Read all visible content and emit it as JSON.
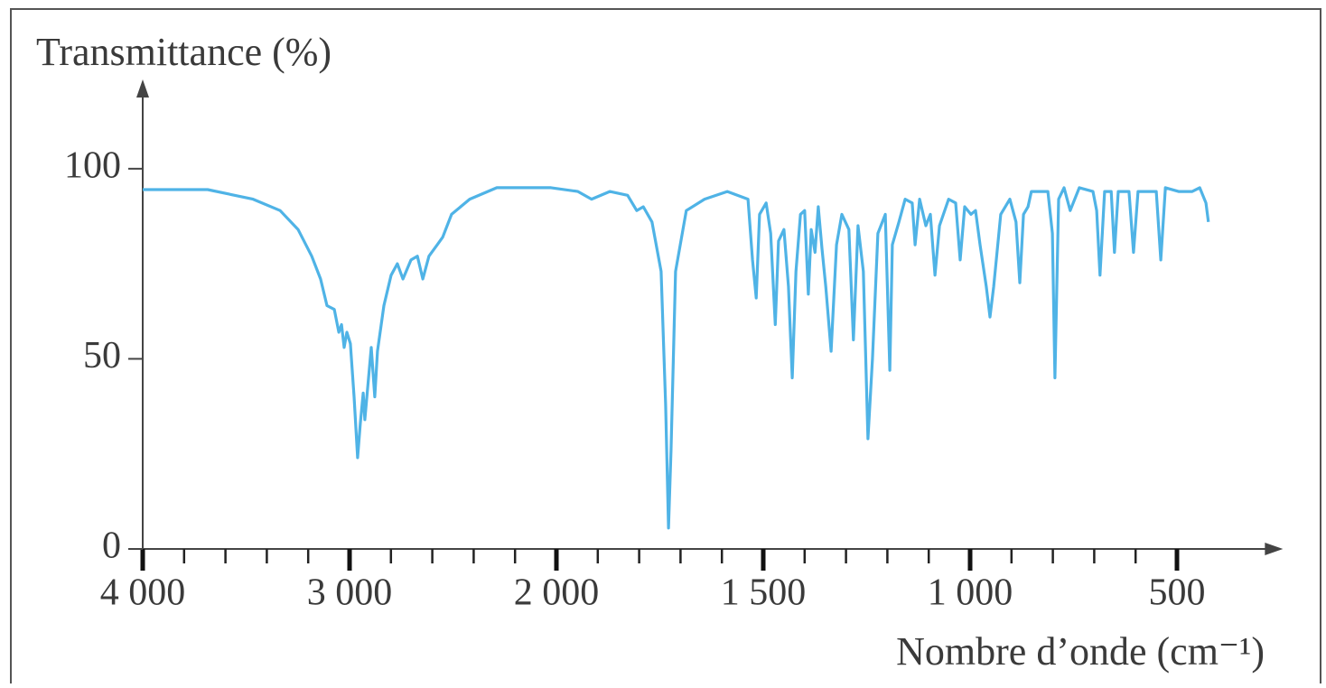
{
  "chart_data": {
    "type": "line",
    "ylabel": "Transmittance (%)",
    "xlabel": "Nombre d’onde (cm⁻¹)",
    "color": "#4fb3e6",
    "xlim": [
      4000,
      270
    ],
    "ylim": [
      0,
      123
    ],
    "xticks": [
      {
        "value": 4000,
        "label": "4 000"
      },
      {
        "value": 3000,
        "label": "3 000"
      },
      {
        "value": 2000,
        "label": "2 000"
      },
      {
        "value": 1500,
        "label": "1 500"
      },
      {
        "value": 1000,
        "label": "1 000"
      },
      500
    ],
    "xminorticks": [
      3800,
      3600,
      3400,
      3200,
      2800,
      2600,
      2400,
      2200,
      1900,
      1800,
      1700,
      1600,
      1400,
      1300,
      1200,
      1100,
      900,
      800,
      700,
      600
    ],
    "yticks": [
      0,
      50,
      100
    ],
    "x": [
      4000,
      3686,
      3467,
      3336,
      3249,
      3183,
      3140,
      3109,
      3074,
      3052,
      3039,
      3026,
      3013,
      2996,
      2978,
      2961,
      2948,
      2934,
      2926,
      2913,
      2895,
      2878,
      2865,
      2834,
      2799,
      2769,
      2742,
      2703,
      2672,
      2646,
      2616,
      2576,
      2550,
      2507,
      2419,
      2288,
      2026,
      1948,
      1915,
      1871,
      1828,
      1806,
      1790,
      1769,
      1747,
      1736,
      1729,
      1723,
      1712,
      1686,
      1642,
      1587,
      1537,
      1526,
      1517,
      1509,
      1493,
      1482,
      1471,
      1463,
      1450,
      1439,
      1430,
      1421,
      1410,
      1400,
      1391,
      1384,
      1375,
      1367,
      1358,
      1349,
      1336,
      1323,
      1310,
      1293,
      1282,
      1271,
      1258,
      1247,
      1236,
      1223,
      1205,
      1194,
      1188,
      1172,
      1157,
      1140,
      1133,
      1122,
      1107,
      1096,
      1085,
      1074,
      1052,
      1035,
      1024,
      1013,
      998,
      987,
      976,
      961,
      952,
      943,
      926,
      904,
      889,
      880,
      871,
      860,
      852,
      812,
      801,
      795,
      786,
      773,
      758,
      736,
      703,
      694,
      686,
      675,
      659,
      651,
      642,
      616,
      605,
      594,
      550,
      539,
      528,
      496,
      463,
      445,
      430,
      424
    ],
    "values": [
      94.5,
      94.5,
      92,
      89,
      84,
      77,
      71,
      64,
      63,
      57,
      59,
      53,
      57,
      54,
      40,
      24,
      33,
      41,
      34,
      42,
      53,
      40,
      52,
      64,
      72,
      75,
      71,
      76,
      77,
      71,
      77,
      80,
      82,
      88,
      92,
      95,
      95,
      94,
      92,
      94,
      93,
      89,
      90,
      86,
      73,
      38,
      5.5,
      26,
      73,
      89,
      92,
      94,
      92,
      76,
      66,
      88,
      91,
      83,
      59,
      81,
      84,
      69,
      45,
      73,
      88,
      89,
      67,
      84,
      78,
      90,
      79,
      69,
      52,
      80,
      88,
      84,
      55,
      85,
      73,
      29,
      50,
      83,
      88,
      47,
      80,
      86,
      92,
      91,
      80,
      92,
      85,
      88,
      72,
      85,
      92,
      91,
      76,
      90,
      88,
      89,
      80,
      69,
      61,
      69,
      88,
      92,
      86,
      70,
      88,
      90,
      94,
      94,
      83,
      45,
      92,
      95,
      89,
      95,
      94,
      89,
      72,
      94,
      94,
      78,
      94,
      94,
      78,
      94,
      94,
      76,
      95,
      94,
      94,
      95,
      91,
      86
    ]
  }
}
